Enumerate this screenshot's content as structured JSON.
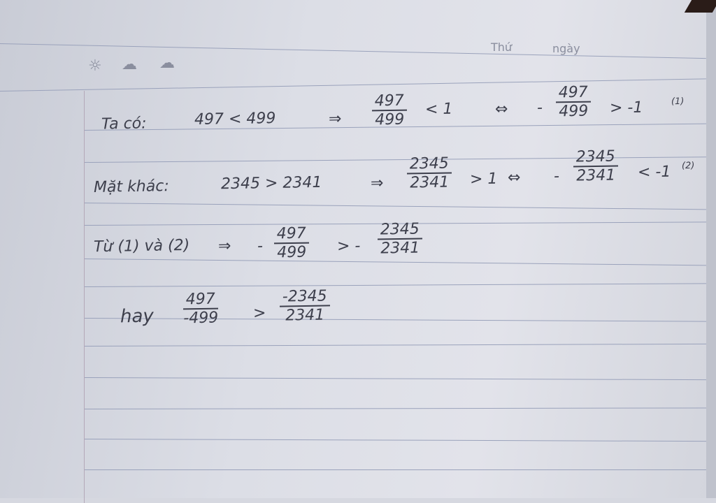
{
  "header": {
    "thu": "Thứ",
    "ngay": "ngày",
    "weather_icons": [
      "sun-icon",
      "rain-cloud-icon",
      "cloud-icon"
    ]
  },
  "lines": [
    {
      "label": "Ta có:",
      "expr": "497 < 499",
      "arrow": "⇒",
      "f1": {
        "n": "497",
        "d": "499"
      },
      "rel1": "< 1",
      "iff": "⇔",
      "sign": "-",
      "f2": {
        "n": "497",
        "d": "499"
      },
      "rel2": "> -1",
      "tag": "(1)"
    },
    {
      "label": "Mặt khác:",
      "expr": "2345 > 2341",
      "arrow": "⇒",
      "f1": {
        "n": "2345",
        "d": "2341"
      },
      "rel1": "> 1",
      "iff": "⇔",
      "sign": "-",
      "f2": {
        "n": "2345",
        "d": "2341"
      },
      "rel2": "< -1",
      "tag": "(2)"
    },
    {
      "label": "Từ (1) và (2)",
      "arrow": "⇒",
      "sign": "-",
      "f1": {
        "n": "497",
        "d": "499"
      },
      "rel1": "> -",
      "f2": {
        "n": "2345",
        "d": "2341"
      }
    },
    {
      "label": "hay",
      "f1": {
        "n": "497",
        "d": "-499"
      },
      "rel1": ">",
      "f2": {
        "n": "-2345",
        "d": "2341"
      }
    }
  ]
}
